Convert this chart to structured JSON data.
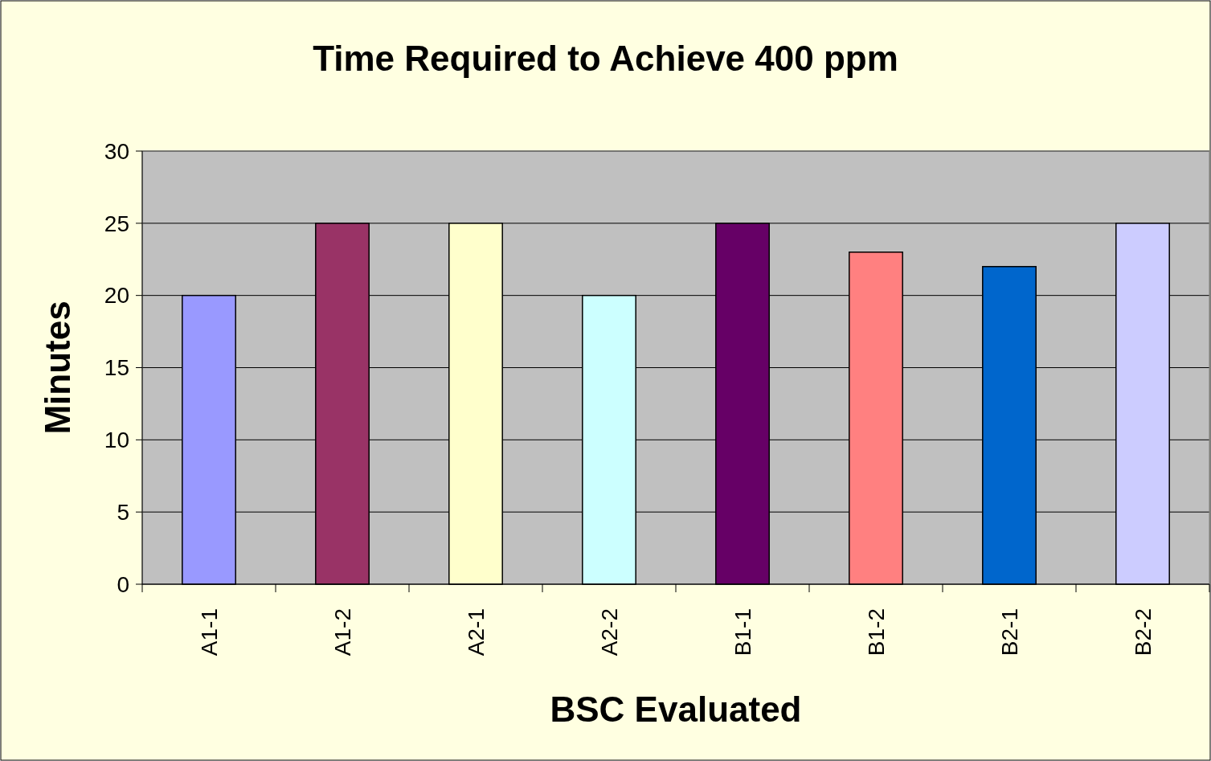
{
  "chart_data": {
    "type": "bar",
    "title": "Time Required to Achieve 400 ppm",
    "xlabel": "BSC Evaluated",
    "ylabel": "Minutes",
    "categories": [
      "A1-1",
      "A1-2",
      "A2-1",
      "A2-2",
      "B1-1",
      "B1-2",
      "B2-1",
      "B2-2"
    ],
    "values": [
      20,
      25,
      25,
      20,
      25,
      23,
      22,
      25
    ],
    "colors": [
      "#9999ff",
      "#993366",
      "#ffffcc",
      "#ccffff",
      "#660066",
      "#ff8080",
      "#0066cc",
      "#ccccff"
    ],
    "ylim": [
      0,
      30
    ],
    "yticks": [
      0,
      5,
      10,
      15,
      20,
      25,
      30
    ],
    "grid": "y"
  }
}
